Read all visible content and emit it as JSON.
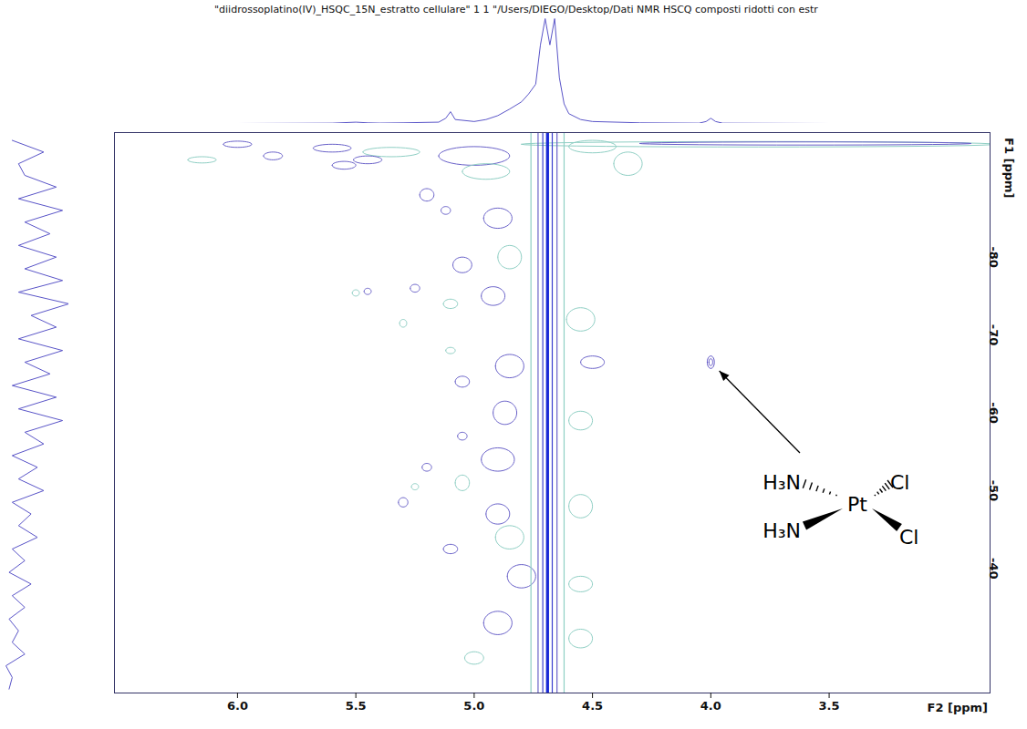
{
  "chart_data": {
    "type": "contour",
    "title": "\"diidrossoplatino(IV)_HSQC_15N_estratto cellulare\"  1  1  \"/Users/DIEGO/Desktop/Dati NMR HSCQ composti ridotti con estr",
    "x_label": "F2 [ppm]",
    "y_label": "F1 [ppm]",
    "xlim": [
      6.52,
      2.82
    ],
    "xticks": [
      {
        "value": 6.0,
        "label": "6.0"
      },
      {
        "value": 5.5,
        "label": "5.5"
      },
      {
        "value": 5.0,
        "label": "5.0"
      },
      {
        "value": 4.5,
        "label": "4.5"
      },
      {
        "value": 4.0,
        "label": "4.0"
      },
      {
        "value": 3.5,
        "label": "3.5"
      }
    ],
    "ylim": [
      -24,
      -96
    ],
    "yticks": [
      -80,
      -70,
      -60,
      -50,
      -40
    ],
    "ridge": {
      "x": 4.69,
      "half_widths": [
        0.0,
        0.02,
        0.04,
        0.07
      ],
      "colors": [
        "#1a2ad6",
        "#3b3fd0",
        "#6a62c9",
        "#8fcfc4"
      ]
    },
    "contours": {
      "x": [
        5.35,
        5.6,
        6.0,
        5.45,
        5.0,
        4.95,
        5.55,
        6.15,
        5.85,
        4.5,
        4.35,
        3.8,
        3.6,
        5.2,
        5.12,
        4.9,
        4.85,
        5.05,
        4.92,
        5.1,
        5.25,
        5.45,
        5.5,
        5.3,
        4.55,
        4.5,
        4.85,
        5.1,
        5.05,
        4.87,
        4.55,
        5.05,
        4.9,
        5.2,
        5.05,
        5.3,
        5.25,
        4.9,
        4.55,
        4.85,
        5.1,
        4.8,
        4.55,
        4.9,
        4.55,
        5.0,
        4.0,
        4.0
      ],
      "y": [
        -93.5,
        -94,
        -94.5,
        -92.5,
        -93,
        -91,
        -91.8,
        -92.5,
        -93,
        -94.2,
        -92,
        -94.5,
        -94.6,
        -88,
        -86,
        -85,
        -80,
        -79,
        -75,
        -74,
        -76,
        -75.6,
        -75.4,
        -71.5,
        -72,
        -66.5,
        -66,
        -68,
        -64,
        -60,
        -59,
        -57,
        -54,
        -53,
        -51,
        -48.5,
        -50.5,
        -47,
        -48,
        -44,
        -42.5,
        -39,
        -38,
        -33,
        -31,
        -28.5,
        -66.5,
        -66.5
      ],
      "x_radius": [
        0.12,
        0.08,
        0.06,
        0.06,
        0.15,
        0.1,
        0.05,
        0.06,
        0.04,
        0.1,
        0.06,
        1.0,
        0.7,
        0.03,
        0.02,
        0.06,
        0.05,
        0.04,
        0.05,
        0.03,
        0.02,
        0.015,
        0.015,
        0.015,
        0.06,
        0.05,
        0.06,
        0.02,
        0.03,
        0.05,
        0.05,
        0.02,
        0.07,
        0.02,
        0.03,
        0.02,
        0.015,
        0.05,
        0.05,
        0.06,
        0.03,
        0.06,
        0.05,
        0.06,
        0.05,
        0.04,
        0.015,
        0.008
      ],
      "y_radius": [
        0.6,
        0.5,
        0.4,
        0.5,
        1.2,
        1.0,
        0.5,
        0.4,
        0.5,
        0.8,
        1.5,
        0.35,
        0.2,
        0.8,
        0.5,
        1.3,
        1.5,
        1.0,
        1.2,
        0.6,
        0.5,
        0.4,
        0.4,
        0.5,
        1.5,
        0.8,
        1.5,
        0.4,
        0.7,
        1.5,
        1.2,
        0.5,
        1.5,
        0.5,
        1.0,
        0.6,
        0.4,
        1.3,
        1.5,
        1.5,
        0.6,
        1.5,
        1.0,
        1.5,
        1.2,
        0.8,
        0.8,
        0.45
      ],
      "colors": [
        "#8fcfc4",
        "#6a62c9",
        "#6a62c9",
        "#6a62c9",
        "#6a62c9",
        "#8fcfc4",
        "#6a62c9",
        "#8fcfc4",
        "#6a62c9",
        "#8fcfc4",
        "#8fcfc4",
        "#8fcfc4",
        "#6a62c9",
        "#6a62c9",
        "#6a62c9",
        "#6a62c9",
        "#8fcfc4",
        "#6a62c9",
        "#6a62c9",
        "#8fcfc4",
        "#6a62c9",
        "#6a62c9",
        "#8fcfc4",
        "#8fcfc4",
        "#8fcfc4",
        "#6a62c9",
        "#6a62c9",
        "#8fcfc4",
        "#6a62c9",
        "#6a62c9",
        "#8fcfc4",
        "#6a62c9",
        "#6a62c9",
        "#6a62c9",
        "#8fcfc4",
        "#6a62c9",
        "#8fcfc4",
        "#6a62c9",
        "#8fcfc4",
        "#8fcfc4",
        "#6a62c9",
        "#6a62c9",
        "#8fcfc4",
        "#6a62c9",
        "#8fcfc4",
        "#8fcfc4",
        "#5b4fc4",
        "#5b4fc4"
      ]
    },
    "f2_projection": {
      "x": [
        6.52,
        6.0,
        5.6,
        5.5,
        5.45,
        5.4,
        5.3,
        5.15,
        5.12,
        5.1,
        5.08,
        5.0,
        4.95,
        4.9,
        4.85,
        4.8,
        4.77,
        4.74,
        4.72,
        4.7,
        4.68,
        4.66,
        4.64,
        4.62,
        4.6,
        4.55,
        4.5,
        4.3,
        4.05,
        4.02,
        4.0,
        3.98,
        3.95,
        3.5,
        3.0,
        2.82
      ],
      "values": [
        0,
        0,
        0.5,
        2,
        1,
        0.6,
        1,
        2,
        8,
        18,
        6,
        3,
        6,
        12,
        22,
        33,
        45,
        60,
        120,
        160,
        120,
        160,
        70,
        30,
        15,
        6,
        3,
        1,
        0.5,
        3,
        8,
        3,
        0.5,
        0,
        0,
        0
      ],
      "color": "#5a55c8"
    },
    "f1_projection": {
      "y": [
        -95,
        -93.5,
        -92,
        -90.5,
        -89,
        -87.5,
        -86,
        -84.5,
        -83,
        -81.5,
        -80,
        -78.5,
        -77,
        -75.5,
        -74,
        -72.5,
        -71,
        -69.5,
        -68,
        -66.5,
        -65,
        -63.5,
        -62,
        -60.5,
        -59,
        -57.5,
        -56,
        -54.5,
        -53,
        -51.5,
        -50,
        -48.5,
        -47,
        -45.5,
        -44,
        -42.5,
        -41,
        -39.5,
        -38,
        -36.5,
        -35,
        -33.5,
        -32,
        -30.5,
        -29,
        -27.5,
        -26,
        -24.5
      ],
      "values": [
        1,
        6,
        2,
        3,
        8,
        2,
        9,
        3,
        7,
        2,
        8,
        3,
        9,
        2,
        10,
        4,
        8,
        2,
        9,
        3,
        7,
        1,
        8,
        2,
        9,
        3,
        6,
        1,
        5,
        2,
        6,
        1,
        4,
        2,
        5,
        1,
        3,
        0.5,
        4,
        1,
        3,
        0.5,
        2,
        1,
        3,
        0,
        1,
        0.5
      ],
      "color": "#5a55c8"
    },
    "annotation": {
      "x": 4.0,
      "y": -66.5,
      "atoms": {
        "center": "Pt",
        "upper_left": "H₃N",
        "upper_right": "Cl",
        "lower_left": "H₃N",
        "lower_right": "Cl"
      }
    }
  }
}
